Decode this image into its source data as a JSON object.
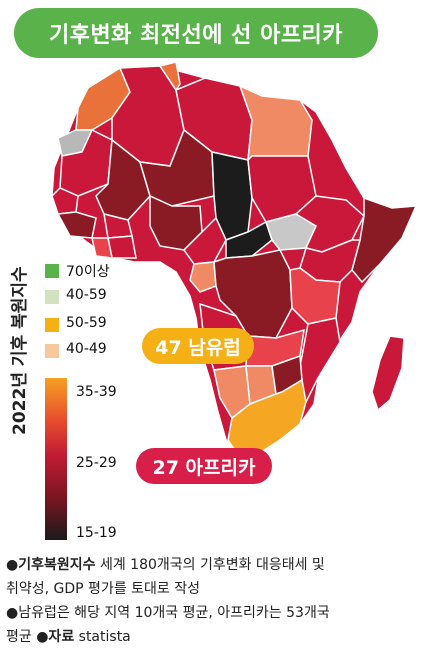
{
  "title": "기후변화 최전선에 선 아프리카",
  "vertical_label": "2022년 기후 복원지수",
  "legend": {
    "items": [
      {
        "label": "70이상",
        "color": "#5ab34a"
      },
      {
        "label": "40-59",
        "color": "#d2e2bf"
      },
      {
        "label": "50-59",
        "color": "#f5b015"
      },
      {
        "label": "40-49",
        "color": "#f6c99c"
      }
    ],
    "gradient_labels": [
      "35-39",
      "25-29",
      "15-19"
    ]
  },
  "callouts": {
    "europe": "47 남유럽",
    "africa": "27 아프리카",
    "europe_color": "#f5b015",
    "africa_color": "#d81f4a"
  },
  "notes": {
    "line1_bold": "●기후복원지수",
    "line1_text": " 세계 180개국의 기후변화 대응태세 및",
    "line2": "취약성, GDP 평가를 토대로 작성",
    "line3": "●남유럽은 해당 지역 10개국 평균, 아프리카는 53개국",
    "line4_text": "평균 ",
    "line4_bold": "●자료",
    "line4_source": " statista"
  }
}
